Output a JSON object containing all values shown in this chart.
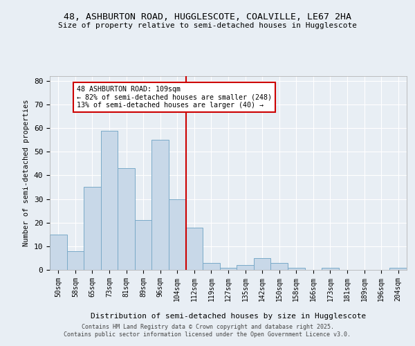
{
  "title_line1": "48, ASHBURTON ROAD, HUGGLESCOTE, COALVILLE, LE67 2HA",
  "title_line2": "Size of property relative to semi-detached houses in Hugglescote",
  "xlabel": "Distribution of semi-detached houses by size in Hugglescote",
  "ylabel": "Number of semi-detached properties",
  "categories": [
    "50sqm",
    "58sqm",
    "65sqm",
    "73sqm",
    "81sqm",
    "89sqm",
    "96sqm",
    "104sqm",
    "112sqm",
    "119sqm",
    "127sqm",
    "135sqm",
    "142sqm",
    "150sqm",
    "158sqm",
    "166sqm",
    "173sqm",
    "181sqm",
    "189sqm",
    "196sqm",
    "204sqm"
  ],
  "values": [
    15,
    8,
    35,
    59,
    43,
    21,
    55,
    30,
    18,
    3,
    1,
    2,
    5,
    3,
    1,
    0,
    1,
    0,
    0,
    0,
    1
  ],
  "bar_color": "#c8d8e8",
  "bar_edge_color": "#7aaac8",
  "vline_color": "#cc0000",
  "annotation_text": "48 ASHBURTON ROAD: 109sqm\n← 82% of semi-detached houses are smaller (248)\n13% of semi-detached houses are larger (40) →",
  "annotation_box_color": "#ffffff",
  "annotation_border_color": "#cc0000",
  "footer_line1": "Contains HM Land Registry data © Crown copyright and database right 2025.",
  "footer_line2": "Contains public sector information licensed under the Open Government Licence v3.0.",
  "ylim": [
    0,
    82
  ],
  "background_color": "#e8eef4",
  "plot_bg_color": "#e8eef4"
}
